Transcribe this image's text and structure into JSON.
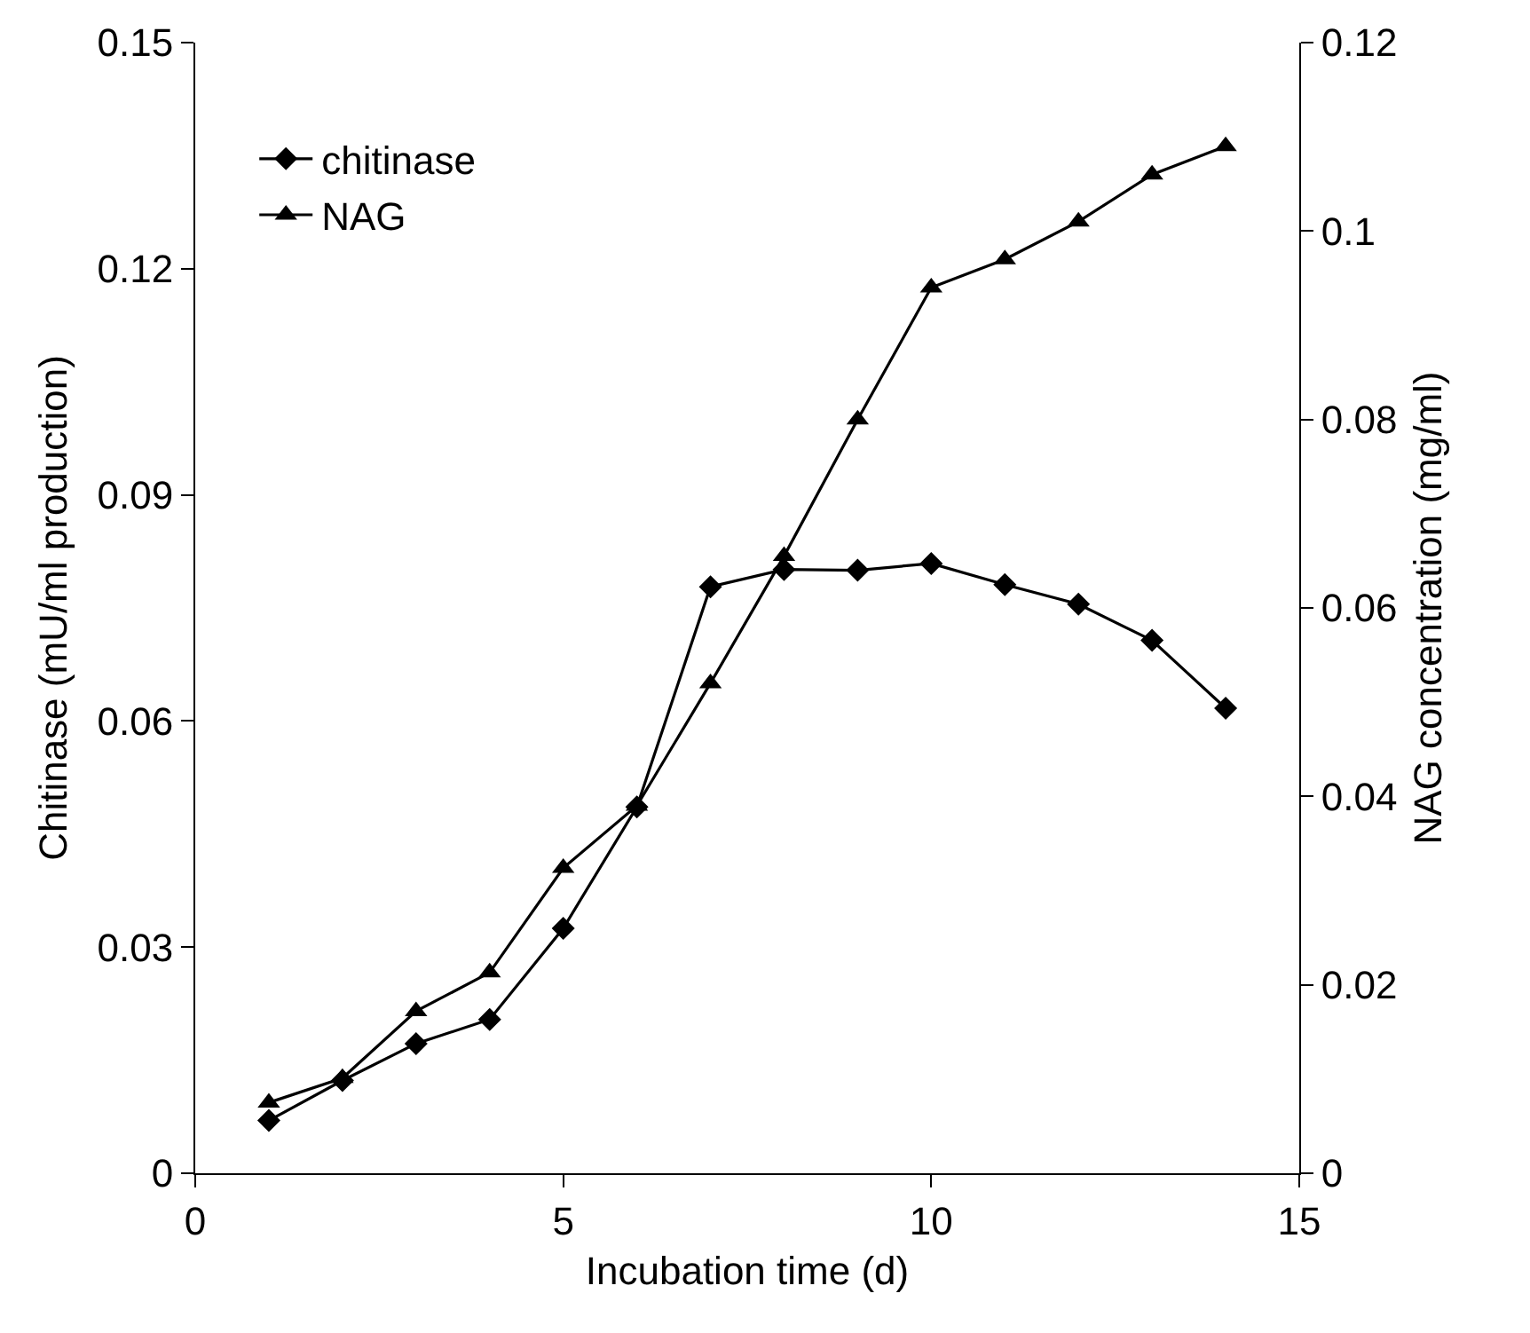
{
  "chart_data": {
    "type": "line",
    "xlabel": "Incubation time (d)",
    "ylabel": "Chitinase (mU/ml production)",
    "y2label": "NAG concentration (mg/ml)",
    "x": [
      1,
      2,
      3,
      4,
      5,
      6,
      7,
      8,
      9,
      10,
      11,
      12,
      13,
      14
    ],
    "xlim": [
      0,
      15
    ],
    "xticks": [
      0,
      5,
      10,
      15
    ],
    "ylim": [
      0,
      0.15
    ],
    "yticks": [
      0,
      0.03,
      0.06,
      0.09,
      0.12,
      0.15
    ],
    "y2lim": [
      0,
      0.12
    ],
    "y2ticks": [
      0,
      0.02,
      0.04,
      0.06,
      0.08,
      0.1,
      0.12
    ],
    "legend": "top left",
    "line_style": "solid",
    "series": [
      {
        "name": "chitinase",
        "color": "#000000",
        "marker": "diamond",
        "values": [
          0.007,
          0.0123,
          0.0172,
          0.0204,
          0.0325,
          0.0486,
          0.0778,
          0.0801,
          0.08,
          0.0809,
          0.0781,
          0.0755,
          0.0707,
          0.0617
        ]
      },
      {
        "name": "NAG",
        "color": "#000000",
        "marker": "triangle",
        "axis": "y2",
        "values": [
          0.0075,
          0.0101,
          0.0172,
          0.0213,
          0.0324,
          0.039,
          0.052,
          0.0655,
          0.08,
          0.094,
          0.097,
          0.101,
          0.106,
          0.109
        ]
      }
    ]
  }
}
